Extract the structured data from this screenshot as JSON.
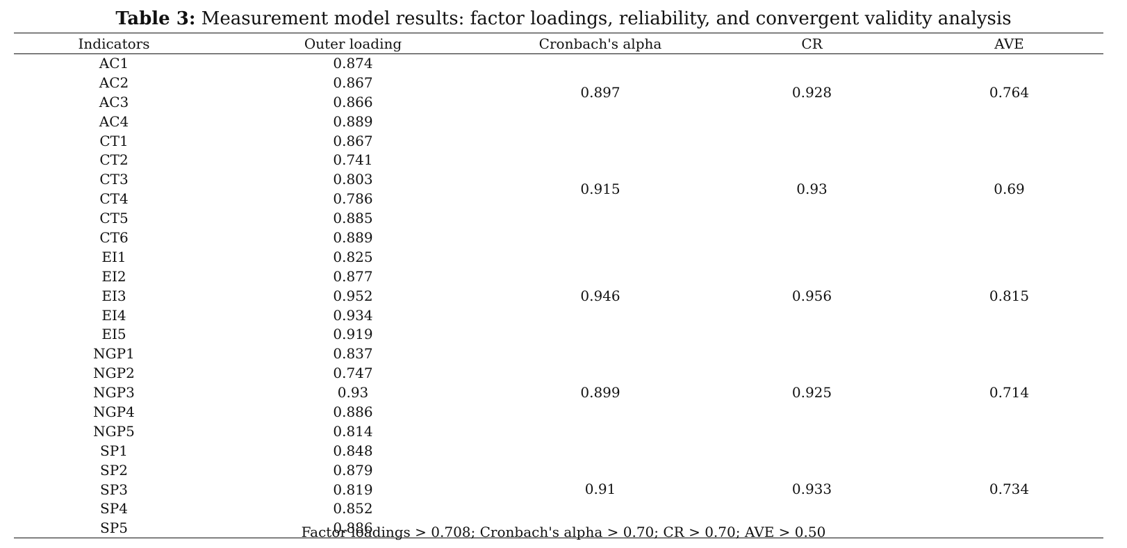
{
  "caption": {
    "label": "Table 3:",
    "text": " Measurement model results: factor loadings, reliability, and convergent validity analysis"
  },
  "headers": [
    "Indicators",
    "Outer loading",
    "Cronbach's alpha",
    "CR",
    "AVE"
  ],
  "groups": [
    {
      "indicators": [
        "AC1",
        "AC2",
        "AC3",
        "AC4"
      ],
      "loadings": [
        "0.874",
        "0.867",
        "0.866",
        "0.889"
      ],
      "alpha": "0.897",
      "cr": "0.928",
      "ave": "0.764"
    },
    {
      "indicators": [
        "CT1",
        "CT2",
        "CT3",
        "CT4",
        "CT5",
        "CT6"
      ],
      "loadings": [
        "0.867",
        "0.741",
        "0.803",
        "0.786",
        "0.885",
        "0.889"
      ],
      "alpha": "0.915",
      "cr": "0.93",
      "ave": "0.69"
    },
    {
      "indicators": [
        "EI1",
        "EI2",
        "EI3",
        "EI4",
        "EI5"
      ],
      "loadings": [
        "0.825",
        "0.877",
        "0.952",
        "0.934",
        "0.919"
      ],
      "alpha": "0.946",
      "cr": "0.956",
      "ave": "0.815"
    },
    {
      "indicators": [
        "NGP1",
        "NGP2",
        "NGP3",
        "NGP4",
        "NGP5"
      ],
      "loadings": [
        "0.837",
        "0.747",
        "0.93",
        "0.886",
        "0.814"
      ],
      "alpha": "0.899",
      "cr": "0.925",
      "ave": "0.714"
    },
    {
      "indicators": [
        "SP1",
        "SP2",
        "SP3",
        "SP4",
        "SP5"
      ],
      "loadings": [
        "0.848",
        "0.879",
        "0.819",
        "0.852",
        "0.886"
      ],
      "alpha": "0.91",
      "cr": "0.933",
      "ave": "0.734"
    }
  ],
  "footnote": "Factor loadings > 0.708; Cronbach's alpha > 0.70; CR > 0.70; AVE > 0.50"
}
